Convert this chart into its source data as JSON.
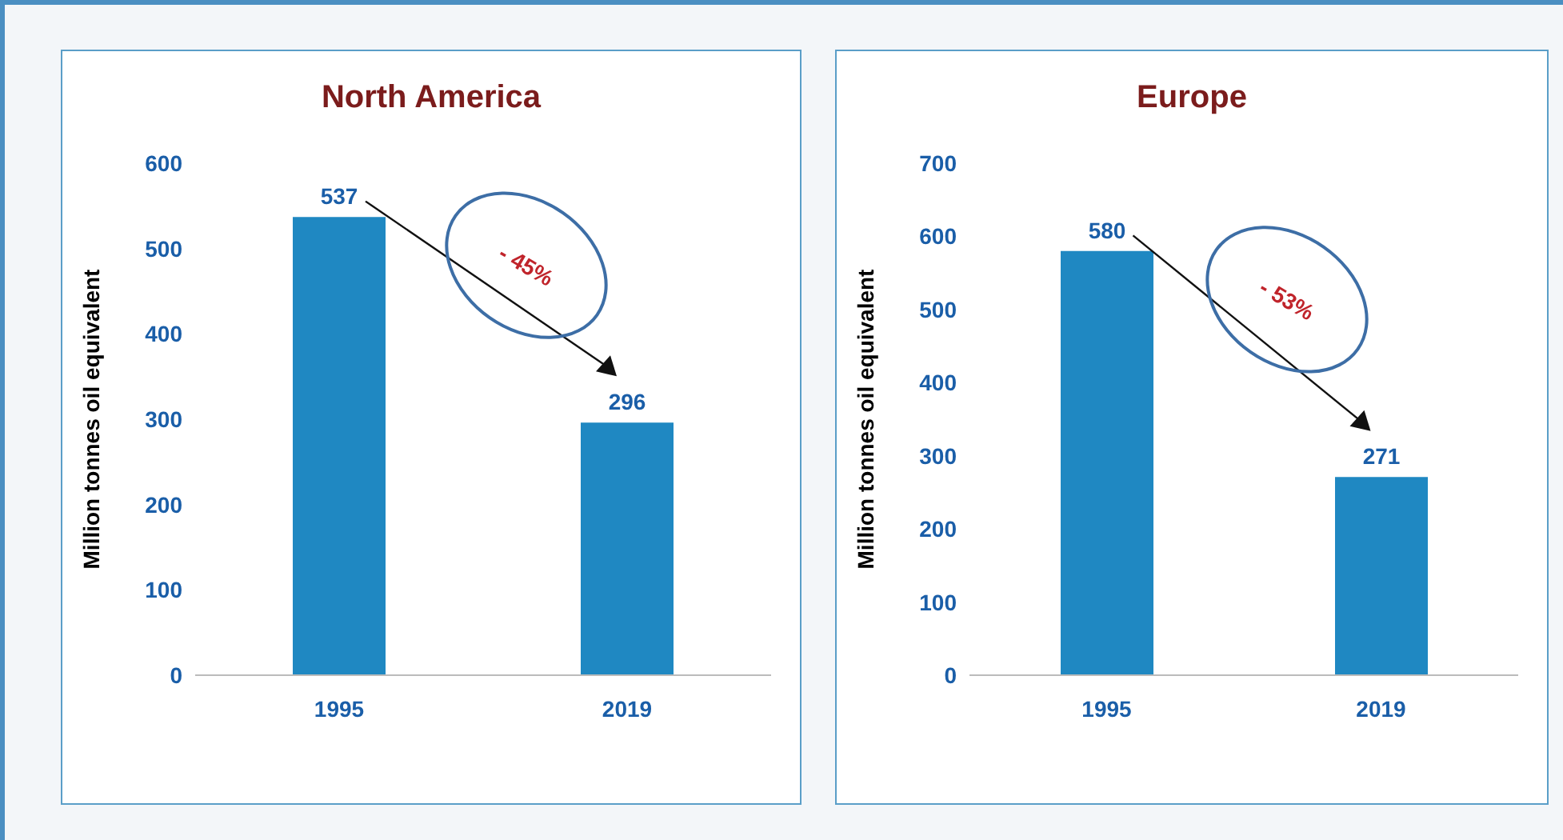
{
  "chart_data": [
    {
      "type": "bar",
      "title": "North America",
      "ylabel": "Million tonnes oil equivalent",
      "categories": [
        "1995",
        "2019"
      ],
      "values": [
        537,
        296
      ],
      "color": "#1f88c2",
      "ylim": [
        0,
        600
      ],
      "yticks": [
        0,
        100,
        200,
        300,
        400,
        500,
        600
      ],
      "data_labels": true,
      "annotations": [
        "- 45%"
      ]
    },
    {
      "type": "bar",
      "title": "Europe",
      "ylabel": "Million tonnes oil equivalent",
      "categories": [
        "1995",
        "2019"
      ],
      "values": [
        580,
        271
      ],
      "color": "#1f88c2",
      "ylim": [
        0,
        700
      ],
      "yticks": [
        0,
        100,
        200,
        300,
        400,
        500,
        600,
        700
      ],
      "data_labels": true,
      "annotations": [
        "- 53%"
      ]
    }
  ]
}
